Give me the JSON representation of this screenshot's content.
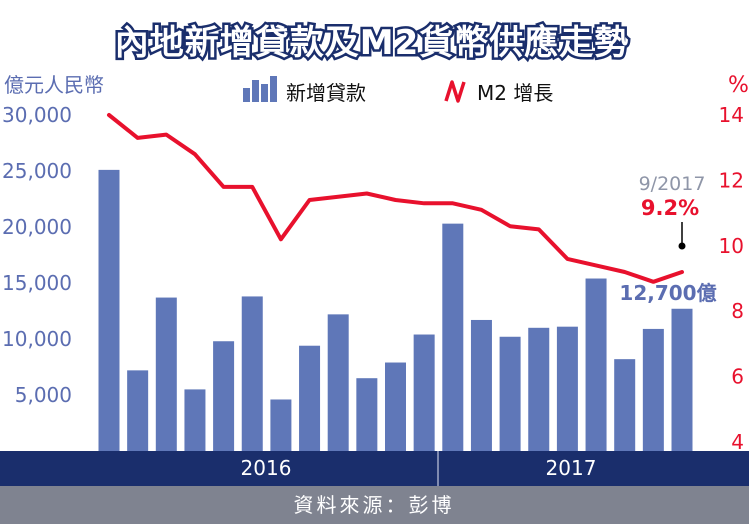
{
  "title": "內地新增貸款及M2貨幣供應走勢",
  "source": "資料來源：彭博",
  "colors": {
    "bars": "#5f77b8",
    "line": "#e8112d",
    "left_axis": "#5b6db1",
    "footer": "#1a2e6c",
    "source_bar": "#7f8390"
  },
  "chart_data": {
    "type": "bar",
    "ylabel": "億元人民幣",
    "ylabel_right": "%",
    "ylim": [
      0,
      30000
    ],
    "ylim_right": [
      2,
      14.5
    ],
    "yticks": [
      "5,000",
      "10,000",
      "15,000",
      "20,000",
      "25,000",
      "30,000"
    ],
    "yticks_right": [
      "4",
      "6",
      "8",
      "10",
      "12",
      "14"
    ],
    "years": [
      "2016",
      "2017"
    ],
    "series": [
      {
        "name": "新增貸款",
        "type": "bar",
        "values": [
          25100,
          7200,
          13700,
          5500,
          9800,
          13800,
          4600,
          9400,
          12200,
          6500,
          7900,
          10400,
          20300,
          11700,
          10200,
          11000,
          11100,
          15400,
          8200,
          10900,
          12700
        ]
      },
      {
        "name": "M2 增長",
        "type": "line",
        "values": [
          14.0,
          13.3,
          13.4,
          12.8,
          11.8,
          11.8,
          10.2,
          11.4,
          11.5,
          11.6,
          11.4,
          11.3,
          11.3,
          11.1,
          10.6,
          10.5,
          9.6,
          9.4,
          9.2,
          8.9,
          9.2
        ]
      }
    ],
    "annotations": {
      "date": "9/2017",
      "m2_latest": "9.2%",
      "loan_latest": "12,700億"
    }
  }
}
